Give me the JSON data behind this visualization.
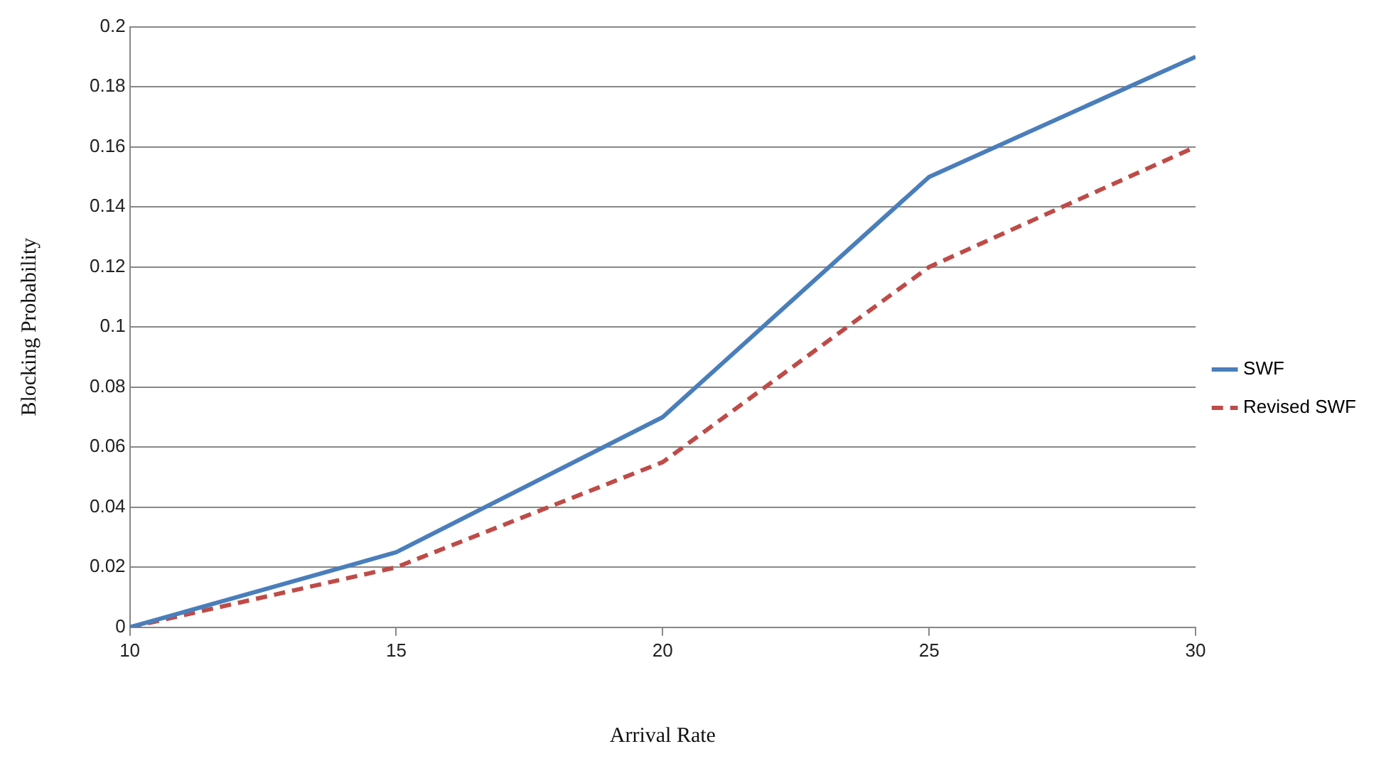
{
  "chart_data": {
    "type": "line",
    "xlabel": "Arrival Rate",
    "ylabel": "Blocking Probability",
    "x": [
      10,
      15,
      20,
      25,
      30
    ],
    "series": [
      {
        "name": "SWF",
        "color": "#4a7ebb",
        "values": [
          0,
          0.025,
          0.07,
          0.15,
          0.19
        ],
        "line_style": "solid"
      },
      {
        "name": "Revised SWF",
        "color": "#be4b48",
        "values": [
          0,
          0.02,
          0.055,
          0.12,
          0.16
        ],
        "line_style": "dashed"
      }
    ],
    "xlim": [
      10,
      30
    ],
    "xticks": [
      10,
      15,
      20,
      25,
      30
    ],
    "ylim": [
      0,
      0.2
    ],
    "yticks": [
      0,
      0.02,
      0.04,
      0.06,
      0.08,
      0.1,
      0.12,
      0.14,
      0.16,
      0.18,
      0.2
    ],
    "grid": "y",
    "legend": "right",
    "marker": "none"
  }
}
